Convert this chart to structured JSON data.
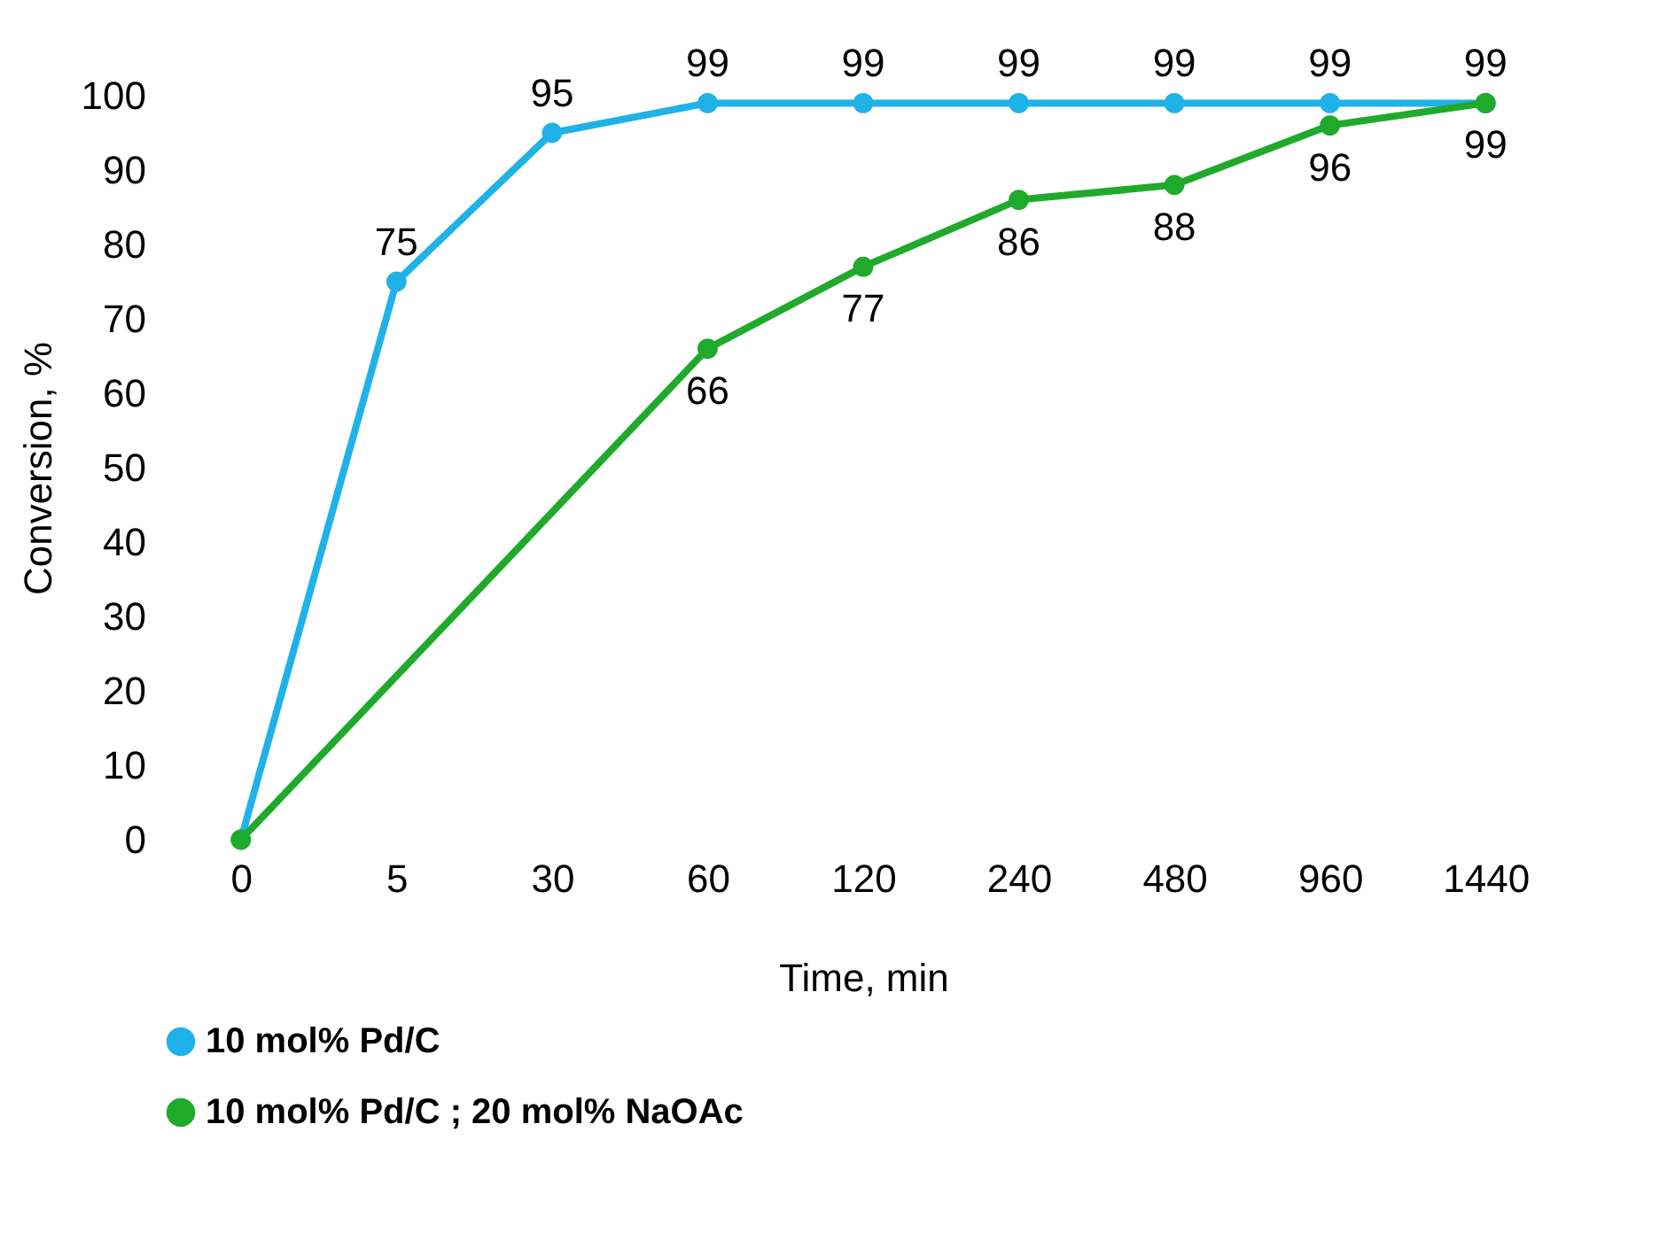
{
  "chart_data": {
    "type": "line",
    "xlabel": "Time, min",
    "ylabel": "Conversion, %",
    "categories": [
      "0",
      "5",
      "30",
      "60",
      "120",
      "240",
      "480",
      "960",
      "1440"
    ],
    "series": [
      {
        "name": "10 mol% Pd/C",
        "color": "#1fb2e8",
        "values": [
          0,
          75,
          95,
          99,
          99,
          99,
          99,
          99,
          99
        ],
        "value_labels": [
          null,
          "75",
          "95",
          "99",
          "99",
          "99",
          "99",
          "99",
          "99"
        ]
      },
      {
        "name": "10 mol% Pd/C ; 20 mol% NaOAc",
        "color": "#1faa2b",
        "values": [
          0,
          null,
          null,
          66,
          77,
          86,
          88,
          96,
          99
        ],
        "value_labels": [
          null,
          null,
          null,
          "66",
          "77",
          "86",
          "88",
          "96",
          "99"
        ]
      }
    ],
    "ylim": [
      0,
      100
    ],
    "yticks": [
      0,
      10,
      20,
      30,
      40,
      50,
      60,
      70,
      80,
      90,
      100
    ],
    "grid": false,
    "legend": "bottom left",
    "marker": "circle",
    "line_style": "solid"
  }
}
